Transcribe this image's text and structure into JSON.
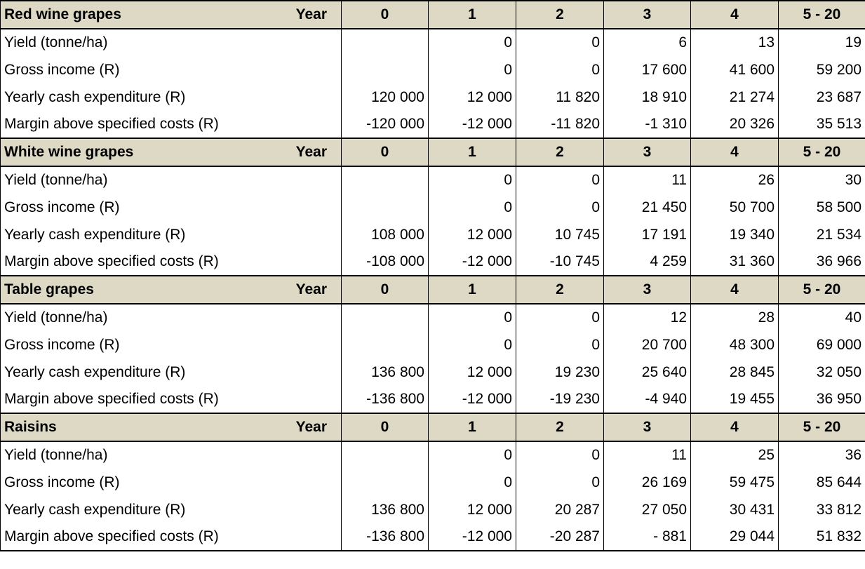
{
  "year_label": "Year",
  "year_columns": [
    "0",
    "1",
    "2",
    "3",
    "4",
    "5 - 20"
  ],
  "sections": [
    {
      "title": "Red wine grapes",
      "rows": [
        {
          "label": "Yield (tonne/ha)",
          "values": [
            "",
            "0",
            "0",
            "6",
            "13",
            "19"
          ]
        },
        {
          "label": "Gross income (R)",
          "values": [
            "",
            "0",
            "0",
            "17 600",
            "41 600",
            "59 200"
          ]
        },
        {
          "label": "Yearly cash expenditure (R)",
          "values": [
            "120 000",
            "12 000",
            "11 820",
            "18 910",
            "21 274",
            "23 687"
          ]
        },
        {
          "label": "Margin above specified costs (R)",
          "values": [
            "-120 000",
            "-12 000",
            "-11 820",
            "-1 310",
            "20 326",
            "35 513"
          ]
        }
      ]
    },
    {
      "title": "White wine grapes",
      "rows": [
        {
          "label": "Yield (tonne/ha)",
          "values": [
            "",
            "0",
            "0",
            "11",
            "26",
            "30"
          ]
        },
        {
          "label": "Gross income (R)",
          "values": [
            "",
            "0",
            "0",
            "21 450",
            "50 700",
            "58 500"
          ]
        },
        {
          "label": "Yearly cash expenditure (R)",
          "values": [
            "108 000",
            "12 000",
            "10 745",
            "17 191",
            "19 340",
            "21 534"
          ]
        },
        {
          "label": "Margin above specified costs (R)",
          "values": [
            "-108 000",
            "-12 000",
            "-10 745",
            "4 259",
            "31 360",
            "36 966"
          ]
        }
      ]
    },
    {
      "title": "Table grapes",
      "rows": [
        {
          "label": "Yield (tonne/ha)",
          "values": [
            "",
            "0",
            "0",
            "12",
            "28",
            "40"
          ]
        },
        {
          "label": "Gross income (R)",
          "values": [
            "",
            "0",
            "0",
            "20 700",
            "48 300",
            "69 000"
          ]
        },
        {
          "label": "Yearly cash expenditure (R)",
          "values": [
            "136 800",
            "12 000",
            "19 230",
            "25 640",
            "28 845",
            "32 050"
          ]
        },
        {
          "label": "Margin above specified costs (R)",
          "values": [
            "-136 800",
            "-12 000",
            "-19 230",
            "-4 940",
            "19 455",
            "36 950"
          ]
        }
      ]
    },
    {
      "title": "Raisins",
      "rows": [
        {
          "label": "Yield (tonne/ha)",
          "values": [
            "",
            "0",
            "0",
            "11",
            "25",
            "36"
          ]
        },
        {
          "label": "Gross income (R)",
          "values": [
            "",
            "0",
            "0",
            "26 169",
            "59 475",
            "85 644"
          ]
        },
        {
          "label": "Yearly cash expenditure (R)",
          "values": [
            "136 800",
            "12 000",
            "20 287",
            "27 050",
            "30 431",
            "33 812"
          ]
        },
        {
          "label": "Margin above specified costs (R)",
          "values": [
            "-136 800",
            "-12 000",
            "-20 287",
            "- 881",
            "29 044",
            "51 832"
          ]
        }
      ]
    }
  ],
  "colors": {
    "header_fill": "#ddd9c4",
    "grid": "#000000"
  }
}
